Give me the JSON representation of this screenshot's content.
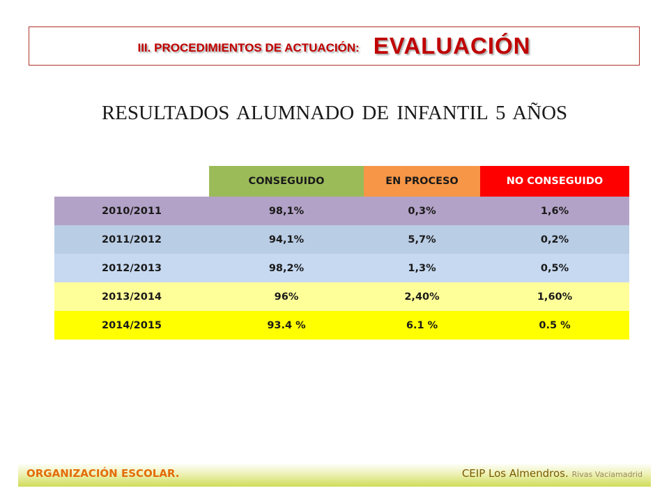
{
  "header": {
    "prefix": "III. PROCEDIMIENTOS DE ACTUACIÓN:",
    "main": "EVALUACIÓN"
  },
  "subtitle": "RESULTADOS ALUMNADO DE INFANTIL 5 AÑOS",
  "table": {
    "columns": [
      "CONSEGUIDO",
      "EN PROCESO",
      "NO CONSEGUIDO"
    ],
    "rows": [
      {
        "year": "2010/2011",
        "conseguido": "98,1%",
        "proceso": "0,3%",
        "no": "1,6%",
        "color": "#b3a2c7"
      },
      {
        "year": "2011/2012",
        "conseguido": "94,1%",
        "proceso": "5,7%",
        "no": "0,2%",
        "color": "#b9cde5"
      },
      {
        "year": "2012/2013",
        "conseguido": "98,2%",
        "proceso": "1,3%",
        "no": "0,5%",
        "color": "#c6d9f1"
      },
      {
        "year": "2013/2014",
        "conseguido": "96%",
        "proceso": "2,40%",
        "no": "1,60%",
        "color": "#ffff99"
      },
      {
        "year": "2014/2015",
        "conseguido": "93.4 %",
        "proceso": "6.1 %",
        "no": "0.5 %",
        "color": "#ffff00"
      }
    ]
  },
  "footer": {
    "left_main": "ORGANIZACIÓN ESCOLAR",
    "left_dot": ".",
    "right_main": "CEIP Los Almendros",
    "right_dot": ".",
    "right_small": "Rivas Vaciamadrid"
  },
  "colors": {
    "title_red": "#c00000",
    "conseguido": "#9bbb59",
    "en_proceso": "#f79646",
    "no_conseguido": "#ff0000"
  }
}
